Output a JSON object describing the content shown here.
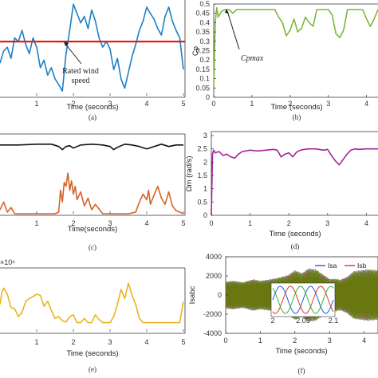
{
  "chart_data": [
    {
      "id": "a",
      "type": "line",
      "xlabel": "Time (seconds)",
      "caption": "(a)",
      "xlim": [
        0,
        5
      ],
      "ylim": [
        0,
        1
      ],
      "xticks": [
        "1",
        "2",
        "3",
        "4",
        "5"
      ],
      "annotation_lines": [
        "Rated wind",
        "speed"
      ],
      "reference_level": 0.58,
      "series": [
        {
          "color": "#1f7fc4",
          "x": [
            0,
            0.1,
            0.2,
            0.3,
            0.4,
            0.5,
            0.6,
            0.7,
            0.8,
            0.9,
            1.0,
            1.1,
            1.2,
            1.3,
            1.4,
            1.5,
            1.6,
            1.7,
            1.8,
            1.9,
            2.0,
            2.1,
            2.2,
            2.3,
            2.4,
            2.5,
            2.6,
            2.7,
            2.8,
            2.9,
            3.0,
            3.1,
            3.2,
            3.3,
            3.4,
            3.5,
            3.6,
            3.7,
            3.8,
            3.9,
            4.0,
            4.1,
            4.2,
            4.3,
            4.4,
            4.5,
            4.6,
            4.7,
            4.8,
            4.9,
            5.0
          ],
          "y": [
            0.35,
            0.48,
            0.52,
            0.4,
            0.62,
            0.58,
            0.7,
            0.55,
            0.45,
            0.62,
            0.52,
            0.3,
            0.38,
            0.22,
            0.3,
            0.18,
            0.12,
            0.05,
            0.45,
            0.7,
            0.98,
            0.88,
            0.78,
            0.85,
            0.72,
            0.92,
            0.8,
            0.62,
            0.52,
            0.58,
            0.5,
            0.28,
            0.4,
            0.18,
            0.08,
            0.25,
            0.42,
            0.55,
            0.7,
            0.8,
            0.95,
            0.88,
            0.82,
            0.72,
            0.65,
            0.85,
            0.95,
            0.8,
            0.7,
            0.62,
            0.28
          ]
        }
      ]
    },
    {
      "id": "b",
      "type": "line",
      "ylabel": "Cp",
      "xlabel": "Time (seconds)",
      "caption": "(b)",
      "xlim": [
        0,
        4.3
      ],
      "ylim": [
        0,
        0.5
      ],
      "yticks": [
        "0",
        "0.05",
        "0.1",
        "0.15",
        "0.2",
        "0.25",
        "0.3",
        "0.35",
        "0.4",
        "0.45",
        "0.5"
      ],
      "xticks": [
        "0",
        "1",
        "2",
        "3",
        "4"
      ],
      "annotation": "Cpmax",
      "series": [
        {
          "color": "#7cb83a",
          "x": [
            0,
            0.04,
            0.08,
            0.12,
            0.2,
            0.3,
            0.4,
            0.5,
            0.6,
            0.7,
            0.8,
            0.9,
            1.0,
            1.1,
            1.2,
            1.3,
            1.4,
            1.5,
            1.6,
            1.7,
            1.8,
            1.9,
            2.0,
            2.1,
            2.2,
            2.3,
            2.4,
            2.5,
            2.6,
            2.7,
            2.8,
            2.9,
            3.0,
            3.1,
            3.2,
            3.3,
            3.4,
            3.5,
            3.6,
            3.7,
            3.8,
            3.9,
            4.0,
            4.1,
            4.2,
            4.3
          ],
          "y": [
            0.05,
            0.4,
            0.48,
            0.43,
            0.46,
            0.47,
            0.47,
            0.45,
            0.47,
            0.47,
            0.47,
            0.47,
            0.47,
            0.47,
            0.47,
            0.47,
            0.47,
            0.47,
            0.47,
            0.43,
            0.4,
            0.33,
            0.36,
            0.42,
            0.35,
            0.37,
            0.43,
            0.4,
            0.38,
            0.47,
            0.47,
            0.47,
            0.47,
            0.44,
            0.34,
            0.32,
            0.36,
            0.47,
            0.47,
            0.47,
            0.47,
            0.47,
            0.42,
            0.38,
            0.42,
            0.47
          ]
        }
      ]
    },
    {
      "id": "c",
      "type": "line",
      "xlabel": "Time(seconds)",
      "caption": "(c)",
      "xlim": [
        0,
        5
      ],
      "ylim": [
        0,
        1
      ],
      "xticks": [
        "1",
        "2",
        "3",
        "4",
        "5"
      ],
      "series": [
        {
          "color": "#111111",
          "x": [
            0,
            0.5,
            1.0,
            1.4,
            1.6,
            1.7,
            1.8,
            1.9,
            2.0,
            2.2,
            2.5,
            2.8,
            3.0,
            3.1,
            3.2,
            3.4,
            3.6,
            3.8,
            4.0,
            4.2,
            4.4,
            4.6,
            4.8,
            5.0
          ],
          "y": [
            0.88,
            0.88,
            0.89,
            0.89,
            0.86,
            0.82,
            0.86,
            0.87,
            0.84,
            0.88,
            0.89,
            0.88,
            0.86,
            0.82,
            0.85,
            0.89,
            0.88,
            0.86,
            0.83,
            0.86,
            0.89,
            0.86,
            0.88,
            0.88
          ]
        },
        {
          "color": "#d4642a",
          "x": [
            0,
            0.1,
            0.2,
            0.3,
            0.4,
            0.5,
            0.6,
            0.7,
            1.0,
            1.3,
            1.5,
            1.6,
            1.65,
            1.7,
            1.75,
            1.8,
            1.85,
            1.9,
            1.95,
            2.0,
            2.05,
            2.1,
            2.2,
            2.3,
            2.4,
            2.5,
            2.6,
            2.8,
            3.0,
            3.2,
            3.5,
            3.7,
            3.8,
            3.9,
            4.0,
            4.05,
            4.1,
            4.2,
            4.3,
            4.4,
            4.5,
            4.6,
            4.7,
            4.8,
            4.9,
            5.0
          ],
          "y": [
            0.05,
            0.15,
            0.02,
            0.08,
            0.0,
            0.0,
            0.0,
            0.0,
            0.0,
            0.0,
            0.0,
            0.02,
            0.3,
            0.15,
            0.4,
            0.35,
            0.52,
            0.3,
            0.42,
            0.25,
            0.35,
            0.18,
            0.28,
            0.1,
            0.2,
            0.05,
            0.12,
            0.0,
            0.0,
            0.0,
            0.0,
            0.02,
            0.15,
            0.25,
            0.18,
            0.3,
            0.12,
            0.24,
            0.35,
            0.2,
            0.12,
            0.28,
            0.1,
            0.04,
            0.02,
            0.0
          ]
        }
      ]
    },
    {
      "id": "d",
      "type": "line",
      "ylabel": "Ωm (rad/s)",
      "xlabel": "Time (seconds)",
      "caption": "(d)",
      "xlim": [
        0,
        4.3
      ],
      "ylim": [
        0,
        3
      ],
      "yticks": [
        "0",
        "0.5",
        "1",
        "1.5",
        "2",
        "2.5",
        "3"
      ],
      "xticks": [
        "0",
        "1",
        "2",
        "3",
        "4"
      ],
      "series": [
        {
          "color": "#a3249e",
          "x": [
            0,
            0.03,
            0.06,
            0.1,
            0.2,
            0.3,
            0.4,
            0.5,
            0.6,
            0.7,
            0.8,
            1.0,
            1.2,
            1.4,
            1.6,
            1.7,
            1.8,
            1.9,
            2.0,
            2.1,
            2.2,
            2.3,
            2.4,
            2.5,
            2.7,
            2.9,
            3.0,
            3.1,
            3.2,
            3.3,
            3.4,
            3.5,
            3.6,
            3.7,
            3.8,
            4.0,
            4.1,
            4.2,
            4.3
          ],
          "y": [
            0.0,
            2.3,
            2.45,
            2.35,
            2.4,
            2.25,
            2.3,
            2.2,
            2.15,
            2.3,
            2.4,
            2.45,
            2.42,
            2.45,
            2.48,
            2.45,
            2.2,
            2.3,
            2.35,
            2.2,
            2.38,
            2.45,
            2.48,
            2.5,
            2.5,
            2.45,
            2.48,
            2.25,
            2.05,
            1.9,
            2.1,
            2.3,
            2.45,
            2.5,
            2.48,
            2.5,
            2.5,
            2.5,
            2.5
          ]
        }
      ]
    },
    {
      "id": "e",
      "type": "line",
      "exponent": "×10⁶",
      "xlabel": "Time (seconds)",
      "caption": "(e)",
      "xlim": [
        0,
        5
      ],
      "ylim": [
        0,
        1
      ],
      "xticks": [
        "1",
        "2",
        "3",
        "4",
        "5"
      ],
      "series": [
        {
          "color": "#e8b420",
          "x": [
            0,
            0.05,
            0.1,
            0.2,
            0.3,
            0.4,
            0.5,
            0.6,
            0.7,
            0.8,
            0.9,
            1.0,
            1.1,
            1.2,
            1.3,
            1.4,
            1.5,
            1.6,
            1.7,
            1.8,
            1.9,
            2.0,
            2.1,
            2.2,
            2.3,
            2.4,
            2.5,
            2.6,
            2.7,
            2.8,
            2.9,
            3.0,
            3.1,
            3.2,
            3.3,
            3.4,
            3.5,
            3.6,
            3.7,
            3.8,
            3.9,
            4.0,
            4.5,
            4.9,
            5.0
          ],
          "y": [
            0.45,
            0.65,
            0.72,
            0.62,
            0.4,
            0.38,
            0.25,
            0.32,
            0.5,
            0.55,
            0.58,
            0.62,
            0.6,
            0.42,
            0.5,
            0.35,
            0.22,
            0.25,
            0.18,
            0.16,
            0.25,
            0.28,
            0.15,
            0.15,
            0.22,
            0.15,
            0.15,
            0.28,
            0.2,
            0.15,
            0.15,
            0.15,
            0.25,
            0.45,
            0.7,
            0.55,
            0.8,
            0.6,
            0.45,
            0.22,
            0.15,
            0.15,
            0.15,
            0.15,
            0.5
          ]
        }
      ]
    },
    {
      "id": "f",
      "type": "line",
      "ylabel": "Isabc",
      "xlabel": "Time (seconds)",
      "caption": "(f)",
      "xlim": [
        0,
        4.4
      ],
      "ylim": [
        -4000,
        4000
      ],
      "yticks": [
        "-4000",
        "-2000",
        "0",
        "2000",
        "4000"
      ],
      "xticks": [
        "0",
        "1",
        "2",
        "3",
        "4"
      ],
      "legend": [
        "Isa",
        "Isb"
      ],
      "series_colors": [
        "#1f5fd6",
        "#d93a2a",
        "#3cae3c",
        "#6d6d00"
      ],
      "envelope": {
        "x": [
          0,
          0.2,
          0.5,
          0.8,
          1.0,
          1.2,
          1.5,
          1.7,
          1.8,
          2.0,
          2.2,
          2.4,
          2.6,
          2.8,
          3.0,
          3.2,
          3.3,
          3.5,
          3.7,
          3.9,
          4.1,
          4.4
        ],
        "amp": [
          1400,
          1500,
          1350,
          1650,
          1500,
          1600,
          1800,
          2000,
          2100,
          2600,
          2300,
          2800,
          2700,
          2200,
          1700,
          1700,
          1600,
          1900,
          2500,
          2600,
          2700,
          2600
        ]
      },
      "inset": {
        "xticks": [
          "2",
          "2.05",
          "2.1"
        ],
        "xlim": [
          2,
          2.1
        ],
        "amp": 1,
        "freq_hz": 20
      }
    }
  ]
}
